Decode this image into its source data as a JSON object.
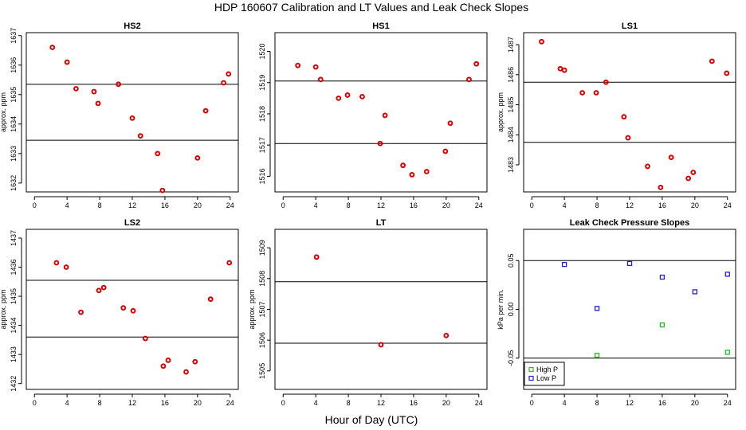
{
  "figure_title": "HDP  160607  Calibration and LT Values and Leak Check Slopes",
  "shared_xlabel": "Hour of Day (UTC)",
  "chart_data": [
    {
      "id": "hs2",
      "type": "scatter",
      "title": "HS2",
      "ylabel": "approx. ppm",
      "xlim": [
        -1,
        25
      ],
      "xticks": [
        0,
        4,
        8,
        12,
        16,
        20,
        24
      ],
      "ylim": [
        1631.7,
        1637.1
      ],
      "yticks": [
        1632,
        1633,
        1634,
        1635,
        1636,
        1637
      ],
      "ref_lines": [
        1635.35,
        1633.45
      ],
      "series": [
        {
          "name": "HS2",
          "color": "#dd0000",
          "marker": "circle",
          "x": [
            2.2,
            4.0,
            5.1,
            7.3,
            7.8,
            10.3,
            12.0,
            13.0,
            15.1,
            15.7,
            20.0,
            21.0,
            23.2,
            23.8
          ],
          "y": [
            1636.6,
            1636.1,
            1635.2,
            1635.1,
            1634.7,
            1635.35,
            1634.2,
            1633.6,
            1633.0,
            1631.75,
            1632.85,
            1634.45,
            1635.4,
            1635.7
          ]
        }
      ]
    },
    {
      "id": "hs1",
      "type": "scatter",
      "title": "HS1",
      "ylabel": "",
      "xlim": [
        -1,
        25
      ],
      "xticks": [
        0,
        4,
        8,
        12,
        16,
        20,
        24
      ],
      "ylim": [
        1515.5,
        1520.6
      ],
      "yticks": [
        1516,
        1517,
        1518,
        1519,
        1520
      ],
      "ref_lines": [
        1519.05,
        1517.05
      ],
      "series": [
        {
          "name": "HS1",
          "color": "#dd0000",
          "marker": "circle",
          "x": [
            1.8,
            4.0,
            4.6,
            6.8,
            7.9,
            9.7,
            11.9,
            12.5,
            14.7,
            15.8,
            17.6,
            19.9,
            20.5,
            22.8,
            23.7
          ],
          "y": [
            1519.55,
            1519.5,
            1519.1,
            1518.5,
            1518.6,
            1518.55,
            1517.05,
            1517.95,
            1516.35,
            1516.05,
            1516.15,
            1516.8,
            1517.7,
            1519.1,
            1519.6
          ]
        }
      ]
    },
    {
      "id": "ls1",
      "type": "scatter",
      "title": "LS1",
      "ylabel": "approx. ppm",
      "xlim": [
        -1,
        25
      ],
      "xticks": [
        0,
        4,
        8,
        12,
        16,
        20,
        24
      ],
      "ylim": [
        1482.1,
        1487.4
      ],
      "yticks": [
        1483,
        1484,
        1485,
        1486,
        1487
      ],
      "ref_lines": [
        1485.75,
        1483.75
      ],
      "series": [
        {
          "name": "LS1",
          "color": "#dd0000",
          "marker": "circle",
          "x": [
            1.2,
            3.5,
            4.0,
            6.2,
            7.9,
            9.1,
            11.3,
            11.8,
            14.2,
            15.8,
            17.1,
            19.2,
            19.8,
            22.1,
            23.9
          ],
          "y": [
            1487.1,
            1486.2,
            1486.15,
            1485.4,
            1485.4,
            1485.75,
            1484.6,
            1483.9,
            1482.95,
            1482.25,
            1483.25,
            1482.55,
            1482.75,
            1486.45,
            1486.05
          ]
        }
      ]
    },
    {
      "id": "ls2",
      "type": "scatter",
      "title": "LS2",
      "ylabel": "approx. ppm",
      "xlim": [
        -1,
        25
      ],
      "xticks": [
        0,
        4,
        8,
        12,
        16,
        20,
        24
      ],
      "ylim": [
        1431.8,
        1437.3
      ],
      "yticks": [
        1432,
        1433,
        1434,
        1435,
        1436,
        1437
      ],
      "ref_lines": [
        1435.55,
        1433.6
      ],
      "series": [
        {
          "name": "LS2",
          "color": "#dd0000",
          "marker": "circle",
          "x": [
            2.7,
            3.9,
            5.7,
            7.9,
            8.5,
            10.9,
            12.1,
            13.6,
            15.8,
            16.4,
            18.6,
            19.7,
            21.6,
            23.9
          ],
          "y": [
            1436.15,
            1436.0,
            1434.45,
            1435.2,
            1435.3,
            1434.6,
            1434.5,
            1433.55,
            1432.6,
            1432.8,
            1432.4,
            1432.75,
            1434.9,
            1436.15
          ]
        }
      ]
    },
    {
      "id": "lt",
      "type": "scatter",
      "title": "LT",
      "ylabel": "approx. ppm",
      "xlim": [
        -1,
        25
      ],
      "xticks": [
        0,
        4,
        8,
        12,
        16,
        20,
        24
      ],
      "ylim": [
        1504.4,
        1509.6
      ],
      "yticks": [
        1505,
        1506,
        1507,
        1508,
        1509
      ],
      "ref_lines": [
        1507.9,
        1505.9
      ],
      "series": [
        {
          "name": "LT",
          "color": "#dd0000",
          "marker": "circle",
          "x": [
            4.1,
            12.0,
            20.0
          ],
          "y": [
            1508.7,
            1505.85,
            1506.15
          ]
        }
      ]
    },
    {
      "id": "leak",
      "type": "scatter",
      "title": "Leak Check Pressure Slopes",
      "ylabel": "kPa per min.",
      "xlim": [
        -1,
        25
      ],
      "xticks": [
        0,
        4,
        8,
        12,
        16,
        20,
        24
      ],
      "ylim": [
        -0.082,
        0.082
      ],
      "yticks": [
        -0.05,
        0.0,
        0.05
      ],
      "ytick_labels": [
        "-0.05",
        "0.00",
        "0.05"
      ],
      "ref_lines": [
        0.05,
        -0.05
      ],
      "legend": {
        "position": "bottom-left",
        "entries": [
          "High P",
          "Low P"
        ]
      },
      "series": [
        {
          "name": "High P",
          "color": "#22bb22",
          "marker": "square",
          "x": [
            8.0,
            16.0,
            24.0
          ],
          "y": [
            -0.047,
            -0.016,
            -0.044
          ]
        },
        {
          "name": "Low P",
          "color": "#2222dd",
          "marker": "square",
          "x": [
            4.0,
            8.0,
            12.0,
            16.0,
            20.0,
            24.0
          ],
          "y": [
            0.046,
            0.001,
            0.047,
            0.033,
            0.018,
            0.036
          ]
        }
      ]
    }
  ]
}
